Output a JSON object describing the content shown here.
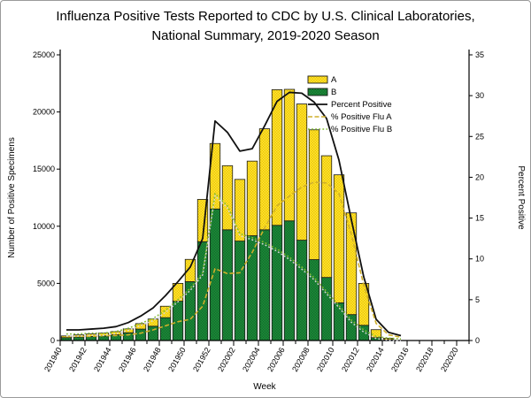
{
  "title": {
    "line1": "Influenza Positive Tests Reported to CDC by U.S. Clinical Laboratories,",
    "line2": "National Summary, 2019-2020 Season"
  },
  "chart_data": {
    "type": "bar",
    "subtype": "stacked bars with overlaid percent lines",
    "categories": [
      "201940",
      "201941",
      "201942",
      "201943",
      "201944",
      "201945",
      "201946",
      "201947",
      "201948",
      "201949",
      "201950",
      "201951",
      "201952",
      "202001",
      "202002",
      "202003",
      "202004",
      "202005",
      "202006",
      "202007",
      "202008",
      "202009",
      "202010",
      "202011",
      "202012",
      "202013",
      "202014",
      "202015",
      "202016",
      "202017",
      "202018",
      "202019",
      "202020"
    ],
    "x_axis": {
      "label": "Week",
      "labeled_tick_interval": 2
    },
    "left_axis": {
      "label": "Number of Positive Specimens",
      "min": 0,
      "max": 25000,
      "step": 5000
    },
    "right_axis": {
      "label": "Percent Positive",
      "min": 0,
      "max": 35,
      "step": 5
    },
    "grid": "off",
    "legend_position": "inside-top-right",
    "stacking_order": "B on bottom, A on top",
    "series_bars": [
      {
        "name": "A",
        "color": "#FFE23D",
        "pattern_color": "#EDCB00",
        "values": [
          150,
          190,
          220,
          250,
          280,
          340,
          480,
          630,
          1000,
          1560,
          1950,
          3700,
          5730,
          5610,
          5400,
          6530,
          8840,
          11870,
          11510,
          11920,
          11360,
          10650,
          11200,
          8900,
          3670,
          700,
          120,
          0,
          0,
          0,
          0,
          0,
          0
        ]
      },
      {
        "name": "B",
        "color": "#1E8A3A",
        "pattern_color": "#12702C",
        "values": [
          250,
          300,
          350,
          400,
          500,
          680,
          1000,
          1250,
          2000,
          3440,
          5150,
          8650,
          11510,
          9690,
          8700,
          9170,
          9690,
          10080,
          10470,
          8780,
          7080,
          5520,
          3300,
          2270,
          1330,
          250,
          80,
          0,
          0,
          0,
          0,
          0,
          0
        ]
      }
    ],
    "series_lines": [
      {
        "name": "Percent Positive",
        "axis": "right",
        "color": "#111111",
        "style": "solid",
        "values": [
          1.3,
          1.3,
          1.4,
          1.5,
          1.7,
          2.2,
          3.0,
          4.0,
          5.5,
          7.2,
          9.0,
          12.5,
          26.9,
          25.5,
          23.2,
          23.5,
          26.3,
          29.3,
          30.4,
          30.3,
          29.2,
          27.2,
          22.1,
          14.8,
          7.8,
          2.6,
          1.0,
          0.6,
          null,
          null,
          null,
          null,
          null
        ]
      },
      {
        "name": "% Positive Flu A",
        "axis": "right",
        "color": "#CFAF2A",
        "style": "dashed",
        "values": [
          0.5,
          0.5,
          0.5,
          0.6,
          0.6,
          0.7,
          0.9,
          1.3,
          1.8,
          2.3,
          2.6,
          4.2,
          8.8,
          8.2,
          8.3,
          10.8,
          13.8,
          16.5,
          17.7,
          18.8,
          19.4,
          19.3,
          18.0,
          13.0,
          6.8,
          2.1,
          0.7,
          0.4,
          null,
          null,
          null,
          null,
          null
        ]
      },
      {
        "name": "% Positive Flu B",
        "axis": "right",
        "color": "#82BB32",
        "style": "dotted",
        "values": [
          0.8,
          0.8,
          0.9,
          0.9,
          1.1,
          1.5,
          2.1,
          2.7,
          3.7,
          5.0,
          6.4,
          8.3,
          18.0,
          16.5,
          13.1,
          12.6,
          12.0,
          11.2,
          10.2,
          9.0,
          7.7,
          6.0,
          4.3,
          2.5,
          1.3,
          0.5,
          0.3,
          0.2,
          null,
          null,
          null,
          null,
          null
        ]
      }
    ],
    "legend": [
      "A",
      "B",
      "Percent Positive",
      "% Positive Flu A",
      "% Positive Flu B"
    ]
  }
}
